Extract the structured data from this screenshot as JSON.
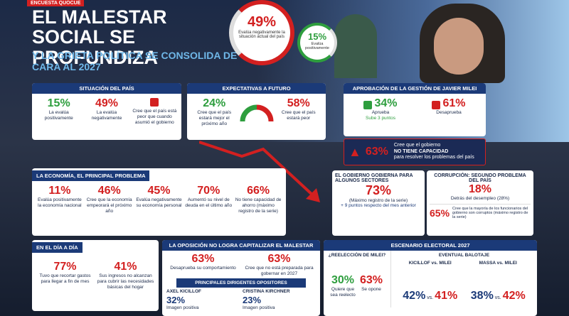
{
  "header": {
    "tag": "ENCUESTA QUOCUE",
    "title": "EL MALESTAR SOCIAL SE PROFUNDIZA",
    "subtitle": "Y LA GRIETA POLÍTICA SE CONSOLIDA DE CARA AL 2027",
    "highlight_main": {
      "value": "49%",
      "label": "Evalúa negativamente la situación actual del país"
    },
    "highlight_small": {
      "value": "15%",
      "label": "Evalúa positivamente"
    }
  },
  "situacion": {
    "title": "SITUACIÓN DEL PAÍS",
    "items": [
      {
        "value": "15%",
        "label": "La evalúa positivamente"
      },
      {
        "value": "49%",
        "label": "La evalúa negativamente"
      },
      {
        "label": "Cree que el país está peor que cuando asumió el gobierno"
      }
    ]
  },
  "expectativas": {
    "title": "EXPECTATIVAS A FUTURO",
    "items": [
      {
        "value": "24%",
        "label": "Cree que el país estará mejor el próximo año"
      },
      {
        "value": "58%",
        "label": "Cree que el país estará peor"
      }
    ]
  },
  "aprobacion": {
    "title": "APROBACIÓN DE LA GESTIÓN DE JAVIER MILEI",
    "items": [
      {
        "value": "34%",
        "label": "Aprueba",
        "note": "Sube 3 puntos"
      },
      {
        "value": "61%",
        "label": "Desaprueba"
      }
    ]
  },
  "capacidad": {
    "value": "63%",
    "label": "Cree que el gobierno",
    "emphasis": "NO TIENE CAPACIDAD",
    "rest": "para resolver los problemas del país"
  },
  "economia": {
    "title": "LA ECONOMÍA, EL PRINCIPAL PROBLEMA",
    "items": [
      {
        "value": "11%",
        "label": "Evalúa positivamente la economía nacional"
      },
      {
        "value": "46%",
        "label": "Cree que la economía empeorará el próximo año"
      },
      {
        "value": "45%",
        "label": "Evalúa negativamente su economía personal"
      },
      {
        "value": "70%",
        "label": "Aumentó su nivel de deuda en el último año"
      },
      {
        "value": "66%",
        "label": "No tiene capacidad de ahorro (máximo registro de la serie)"
      }
    ]
  },
  "sectores": {
    "title": "EL GOBIERNO GOBIERNA PARA ALGUNOS SECTORES",
    "value": "73%",
    "label": "(Máximo registro de la serie)",
    "note": "+ 9 puntos respecto del mes anterior"
  },
  "corrupcion": {
    "title": "CORRUPCIÓN: SEGUNDO PROBLEMA DEL PAÍS",
    "value": "18%",
    "label": "Detrás del desempleo (28%)",
    "value2": "65%",
    "label2": "Cree que la mayoría de los funcionarios del gobierno son corruptos (máximo registro de la serie)"
  },
  "dia": {
    "title": "EN EL DÍA A DÍA",
    "items": [
      {
        "value": "77%",
        "label": "Tuvo que recortar gastos para llegar a fin de mes"
      },
      {
        "value": "41%",
        "label": "Sus ingresos no alcanzan para cubrir las necesidades básicas del hogar"
      }
    ]
  },
  "oposicion": {
    "title": "LA OPOSICIÓN NO LOGRA CAPITALIZAR EL MALESTAR",
    "items": [
      {
        "value": "63%",
        "label": "Desaprueba su comportamiento"
      },
      {
        "value": "63%",
        "label": "Cree que no está preparada para gobernar en 2027"
      }
    ],
    "leaders_title": "PRINCIPALES DIRIGENTES OPOSITORES",
    "leaders": [
      {
        "name": "AXEL KICILLOF",
        "value": "32%",
        "label": "Imagen positiva"
      },
      {
        "name": "CRISTINA KIRCHNER",
        "value": "23%",
        "label": "Imagen positiva"
      }
    ]
  },
  "electoral": {
    "title": "ESCENARIO ELECTORAL 2027",
    "reeleccion": {
      "title": "¿REELECCIÓN DE MILEI?",
      "items": [
        {
          "value": "30%",
          "label": "Quiere que sea reelecto"
        },
        {
          "value": "63%",
          "label": "Se opone"
        }
      ]
    },
    "balotaje": {
      "title": "EVENTUAL BALOTAJE",
      "matchups": [
        {
          "title": "KICILLOF vs. MILEI",
          "left": "42%",
          "sep": "vs.",
          "right": "41%"
        },
        {
          "title": "MASSA vs. MILEI",
          "left": "38%",
          "sep": "vs.",
          "right": "42%"
        }
      ]
    }
  }
}
